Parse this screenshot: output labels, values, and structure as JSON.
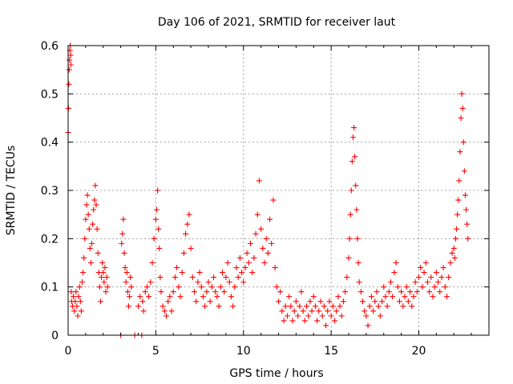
{
  "chart_data": {
    "type": "scatter",
    "title": "Day 106 of 2021, SRMTID for receiver laut",
    "xlabel": "GPS time / hours",
    "ylabel": "SRMTID / TECUs",
    "xlim": [
      0,
      24
    ],
    "ylim": [
      0,
      0.6
    ],
    "xticks": [
      0,
      5,
      10,
      15,
      20
    ],
    "xtick_labels": [
      "0",
      "5",
      "10",
      "15",
      "20"
    ],
    "yticks": [
      0,
      0.1,
      0.2,
      0.3,
      0.4,
      0.5,
      0.6
    ],
    "ytick_labels": [
      "0",
      "0.1",
      "0.2",
      "0.3",
      "0.4",
      "0.5",
      "0.6"
    ],
    "grid": true,
    "marker": "plus",
    "series_color": "#ff0000",
    "series": [
      {
        "name": "SRMTID",
        "points": [
          [
            0.0,
            0.42
          ],
          [
            0.02,
            0.47
          ],
          [
            0.04,
            0.52
          ],
          [
            0.06,
            0.55
          ],
          [
            0.08,
            0.57
          ],
          [
            0.1,
            0.59
          ],
          [
            0.12,
            0.6
          ],
          [
            0.14,
            0.58
          ],
          [
            0.16,
            0.56
          ],
          [
            0.18,
            0.09
          ],
          [
            0.2,
            0.07
          ],
          [
            0.25,
            0.06
          ],
          [
            0.3,
            0.08
          ],
          [
            0.35,
            0.05
          ],
          [
            0.4,
            0.07
          ],
          [
            0.45,
            0.09
          ],
          [
            0.5,
            0.06
          ],
          [
            0.55,
            0.04
          ],
          [
            0.6,
            0.08
          ],
          [
            0.65,
            0.1
          ],
          [
            0.7,
            0.07
          ],
          [
            0.75,
            0.05
          ],
          [
            0.8,
            0.11
          ],
          [
            0.85,
            0.13
          ],
          [
            0.9,
            0.16
          ],
          [
            0.95,
            0.2
          ],
          [
            1.0,
            0.24
          ],
          [
            1.05,
            0.27
          ],
          [
            1.1,
            0.29
          ],
          [
            1.15,
            0.25
          ],
          [
            1.2,
            0.22
          ],
          [
            1.25,
            0.18
          ],
          [
            1.3,
            0.15
          ],
          [
            1.35,
            0.19
          ],
          [
            1.4,
            0.23
          ],
          [
            1.45,
            0.26
          ],
          [
            1.5,
            0.28
          ],
          [
            1.55,
            0.31
          ],
          [
            1.6,
            0.27
          ],
          [
            1.65,
            0.22
          ],
          [
            1.7,
            0.17
          ],
          [
            1.75,
            0.13
          ],
          [
            1.8,
            0.1
          ],
          [
            1.85,
            0.07
          ],
          [
            1.9,
            0.12
          ],
          [
            1.95,
            0.15
          ],
          [
            2.0,
            0.13
          ],
          [
            2.05,
            0.11
          ],
          [
            2.1,
            0.14
          ],
          [
            2.15,
            0.09
          ],
          [
            2.2,
            0.12
          ],
          [
            2.25,
            0.1
          ],
          [
            3.0,
            0.0
          ],
          [
            3.05,
            0.19
          ],
          [
            3.1,
            0.21
          ],
          [
            3.15,
            0.24
          ],
          [
            3.2,
            0.17
          ],
          [
            3.25,
            0.14
          ],
          [
            3.3,
            0.11
          ],
          [
            3.35,
            0.13
          ],
          [
            3.4,
            0.09
          ],
          [
            3.45,
            0.06
          ],
          [
            3.5,
            0.08
          ],
          [
            3.55,
            0.12
          ],
          [
            3.6,
            0.1
          ],
          [
            3.8,
            0.0
          ],
          [
            4.0,
            0.06
          ],
          [
            4.1,
            0.08
          ],
          [
            4.2,
            0.0
          ],
          [
            4.25,
            0.07
          ],
          [
            4.3,
            0.05
          ],
          [
            4.4,
            0.09
          ],
          [
            4.5,
            0.1
          ],
          [
            4.6,
            0.08
          ],
          [
            4.7,
            0.11
          ],
          [
            4.8,
            0.15
          ],
          [
            4.9,
            0.2
          ],
          [
            5.0,
            0.24
          ],
          [
            5.05,
            0.26
          ],
          [
            5.1,
            0.3
          ],
          [
            5.15,
            0.22
          ],
          [
            5.2,
            0.18
          ],
          [
            5.25,
            0.12
          ],
          [
            5.3,
            0.09
          ],
          [
            5.4,
            0.06
          ],
          [
            5.5,
            0.05
          ],
          [
            5.6,
            0.04
          ],
          [
            5.7,
            0.07
          ],
          [
            5.8,
            0.08
          ],
          [
            5.9,
            0.05
          ],
          [
            6.0,
            0.09
          ],
          [
            6.1,
            0.12
          ],
          [
            6.2,
            0.14
          ],
          [
            6.3,
            0.1
          ],
          [
            6.4,
            0.08
          ],
          [
            6.5,
            0.13
          ],
          [
            6.6,
            0.17
          ],
          [
            6.7,
            0.21
          ],
          [
            6.8,
            0.23
          ],
          [
            6.9,
            0.25
          ],
          [
            7.0,
            0.18
          ],
          [
            7.1,
            0.12
          ],
          [
            7.2,
            0.09
          ],
          [
            7.3,
            0.07
          ],
          [
            7.4,
            0.11
          ],
          [
            7.5,
            0.13
          ],
          [
            7.6,
            0.1
          ],
          [
            7.7,
            0.08
          ],
          [
            7.8,
            0.06
          ],
          [
            7.9,
            0.09
          ],
          [
            8.0,
            0.11
          ],
          [
            8.1,
            0.07
          ],
          [
            8.2,
            0.1
          ],
          [
            8.3,
            0.12
          ],
          [
            8.4,
            0.09
          ],
          [
            8.5,
            0.08
          ],
          [
            8.6,
            0.06
          ],
          [
            8.7,
            0.1
          ],
          [
            8.8,
            0.13
          ],
          [
            8.9,
            0.09
          ],
          [
            9.0,
            0.12
          ],
          [
            9.1,
            0.15
          ],
          [
            9.2,
            0.11
          ],
          [
            9.3,
            0.08
          ],
          [
            9.4,
            0.06
          ],
          [
            9.5,
            0.1
          ],
          [
            9.6,
            0.14
          ],
          [
            9.7,
            0.12
          ],
          [
            9.8,
            0.16
          ],
          [
            9.9,
            0.13
          ],
          [
            10.0,
            0.11
          ],
          [
            10.1,
            0.14
          ],
          [
            10.2,
            0.17
          ],
          [
            10.3,
            0.15
          ],
          [
            10.4,
            0.19
          ],
          [
            10.5,
            0.13
          ],
          [
            10.6,
            0.16
          ],
          [
            10.7,
            0.21
          ],
          [
            10.8,
            0.25
          ],
          [
            10.9,
            0.32
          ],
          [
            11.0,
            0.22
          ],
          [
            11.1,
            0.18
          ],
          [
            11.2,
            0.15
          ],
          [
            11.3,
            0.2
          ],
          [
            11.4,
            0.17
          ],
          [
            11.5,
            0.24
          ],
          [
            11.6,
            0.19
          ],
          [
            11.7,
            0.28
          ],
          [
            11.8,
            0.14
          ],
          [
            11.9,
            0.1
          ],
          [
            12.0,
            0.07
          ],
          [
            12.1,
            0.09
          ],
          [
            12.2,
            0.05
          ],
          [
            12.3,
            0.03
          ],
          [
            12.4,
            0.06
          ],
          [
            12.5,
            0.04
          ],
          [
            12.6,
            0.08
          ],
          [
            12.7,
            0.06
          ],
          [
            12.8,
            0.03
          ],
          [
            12.9,
            0.05
          ],
          [
            13.0,
            0.07
          ],
          [
            13.1,
            0.04
          ],
          [
            13.2,
            0.06
          ],
          [
            13.3,
            0.09
          ],
          [
            13.4,
            0.05
          ],
          [
            13.5,
            0.03
          ],
          [
            13.6,
            0.06
          ],
          [
            13.7,
            0.04
          ],
          [
            13.8,
            0.07
          ],
          [
            13.9,
            0.05
          ],
          [
            14.0,
            0.08
          ],
          [
            14.1,
            0.06
          ],
          [
            14.2,
            0.03
          ],
          [
            14.3,
            0.05
          ],
          [
            14.4,
            0.07
          ],
          [
            14.5,
            0.04
          ],
          [
            14.6,
            0.06
          ],
          [
            14.7,
            0.02
          ],
          [
            14.8,
            0.05
          ],
          [
            14.9,
            0.07
          ],
          [
            15.0,
            0.04
          ],
          [
            15.1,
            0.06
          ],
          [
            15.2,
            0.03
          ],
          [
            15.3,
            0.05
          ],
          [
            15.4,
            0.08
          ],
          [
            15.5,
            0.06
          ],
          [
            15.6,
            0.04
          ],
          [
            15.7,
            0.07
          ],
          [
            15.8,
            0.09
          ],
          [
            15.9,
            0.12
          ],
          [
            16.0,
            0.16
          ],
          [
            16.05,
            0.2
          ],
          [
            16.1,
            0.25
          ],
          [
            16.15,
            0.3
          ],
          [
            16.2,
            0.36
          ],
          [
            16.25,
            0.41
          ],
          [
            16.3,
            0.43
          ],
          [
            16.35,
            0.37
          ],
          [
            16.4,
            0.31
          ],
          [
            16.45,
            0.26
          ],
          [
            16.5,
            0.2
          ],
          [
            16.55,
            0.15
          ],
          [
            16.6,
            0.11
          ],
          [
            16.7,
            0.09
          ],
          [
            16.8,
            0.07
          ],
          [
            16.9,
            0.05
          ],
          [
            17.0,
            0.04
          ],
          [
            17.1,
            0.02
          ],
          [
            17.2,
            0.06
          ],
          [
            17.3,
            0.08
          ],
          [
            17.4,
            0.05
          ],
          [
            17.5,
            0.07
          ],
          [
            17.6,
            0.09
          ],
          [
            17.7,
            0.06
          ],
          [
            17.8,
            0.04
          ],
          [
            17.9,
            0.07
          ],
          [
            18.0,
            0.1
          ],
          [
            18.1,
            0.08
          ],
          [
            18.2,
            0.06
          ],
          [
            18.3,
            0.09
          ],
          [
            18.4,
            0.11
          ],
          [
            18.5,
            0.08
          ],
          [
            18.6,
            0.13
          ],
          [
            18.7,
            0.15
          ],
          [
            18.8,
            0.1
          ],
          [
            18.9,
            0.07
          ],
          [
            19.0,
            0.09
          ],
          [
            19.1,
            0.06
          ],
          [
            19.2,
            0.08
          ],
          [
            19.3,
            0.1
          ],
          [
            19.4,
            0.07
          ],
          [
            19.5,
            0.09
          ],
          [
            19.6,
            0.06
          ],
          [
            19.7,
            0.08
          ],
          [
            19.8,
            0.11
          ],
          [
            19.9,
            0.09
          ],
          [
            20.0,
            0.12
          ],
          [
            20.1,
            0.14
          ],
          [
            20.2,
            0.1
          ],
          [
            20.3,
            0.13
          ],
          [
            20.4,
            0.15
          ],
          [
            20.5,
            0.11
          ],
          [
            20.6,
            0.09
          ],
          [
            20.7,
            0.12
          ],
          [
            20.8,
            0.08
          ],
          [
            20.9,
            0.1
          ],
          [
            21.0,
            0.13
          ],
          [
            21.1,
            0.11
          ],
          [
            21.2,
            0.09
          ],
          [
            21.3,
            0.12
          ],
          [
            21.4,
            0.14
          ],
          [
            21.5,
            0.1
          ],
          [
            21.6,
            0.08
          ],
          [
            21.7,
            0.12
          ],
          [
            21.8,
            0.15
          ],
          [
            21.9,
            0.17
          ],
          [
            22.0,
            0.18
          ],
          [
            22.05,
            0.16
          ],
          [
            22.1,
            0.2
          ],
          [
            22.15,
            0.22
          ],
          [
            22.2,
            0.25
          ],
          [
            22.25,
            0.28
          ],
          [
            22.3,
            0.32
          ],
          [
            22.35,
            0.38
          ],
          [
            22.4,
            0.45
          ],
          [
            22.45,
            0.5
          ],
          [
            22.5,
            0.47
          ],
          [
            22.55,
            0.4
          ],
          [
            22.6,
            0.34
          ],
          [
            22.65,
            0.29
          ],
          [
            22.7,
            0.26
          ],
          [
            22.75,
            0.23
          ],
          [
            22.8,
            0.2
          ]
        ]
      }
    ]
  }
}
